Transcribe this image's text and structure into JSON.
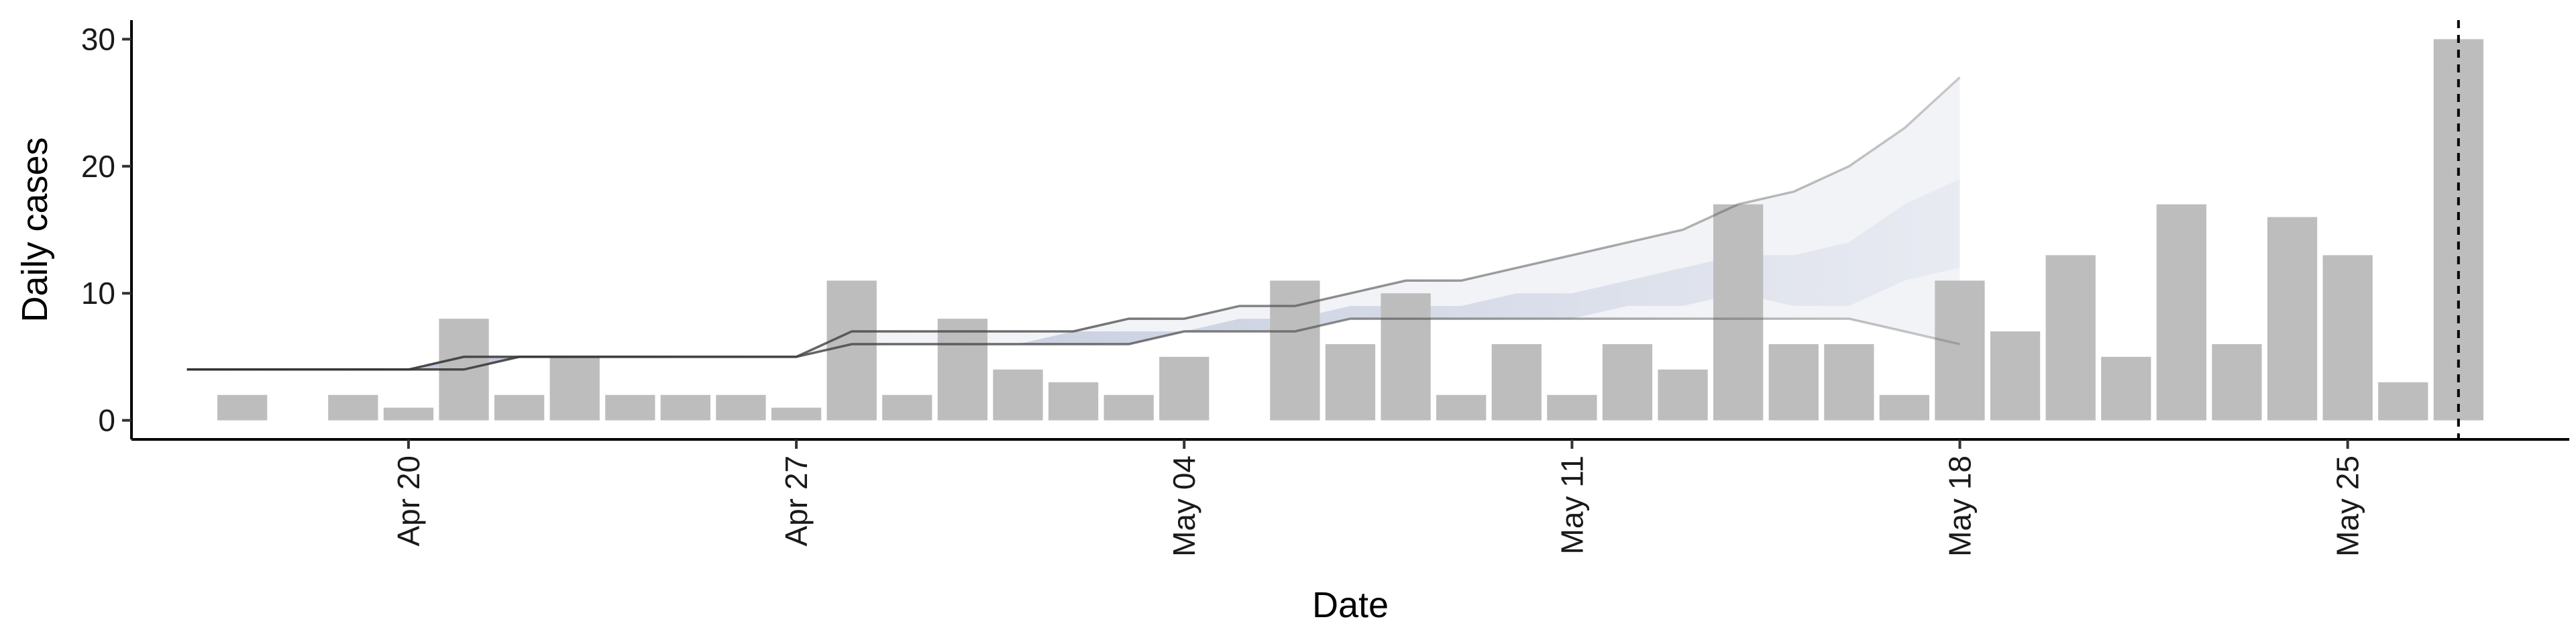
{
  "chart_data": {
    "type": "bar",
    "xlabel": "Date",
    "ylabel": "Daily cases",
    "ylim": [
      -1.5,
      31.5
    ],
    "xlim": [
      "2020-04-15",
      "2020-05-29"
    ],
    "yticks": [
      0,
      10,
      20,
      30
    ],
    "xticks": [
      {
        "date": "2020-04-20",
        "label": "Apr 20"
      },
      {
        "date": "2020-04-27",
        "label": "Apr 27"
      },
      {
        "date": "2020-05-04",
        "label": "May 04"
      },
      {
        "date": "2020-05-11",
        "label": "May 11"
      },
      {
        "date": "2020-05-18",
        "label": "May 18"
      },
      {
        "date": "2020-05-25",
        "label": "May 25"
      }
    ],
    "grid": false,
    "bars": {
      "color": "#bdbdbd",
      "dates": [
        "2020-04-17",
        "2020-04-18",
        "2020-04-19",
        "2020-04-20",
        "2020-04-21",
        "2020-04-22",
        "2020-04-23",
        "2020-04-24",
        "2020-04-25",
        "2020-04-26",
        "2020-04-27",
        "2020-04-28",
        "2020-04-29",
        "2020-04-30",
        "2020-05-01",
        "2020-05-02",
        "2020-05-03",
        "2020-05-04",
        "2020-05-05",
        "2020-05-06",
        "2020-05-07",
        "2020-05-08",
        "2020-05-09",
        "2020-05-10",
        "2020-05-11",
        "2020-05-12",
        "2020-05-13",
        "2020-05-14",
        "2020-05-15",
        "2020-05-16",
        "2020-05-17",
        "2020-05-18",
        "2020-05-19",
        "2020-05-20",
        "2020-05-21",
        "2020-05-22",
        "2020-05-23",
        "2020-05-24",
        "2020-05-25",
        "2020-05-26",
        "2020-05-27"
      ],
      "values": [
        2,
        0,
        2,
        1,
        8,
        2,
        5,
        2,
        2,
        2,
        1,
        11,
        2,
        8,
        4,
        3,
        2,
        5,
        0,
        11,
        6,
        10,
        2,
        6,
        2,
        6,
        4,
        17,
        6,
        6,
        2,
        11,
        7,
        13,
        5,
        17,
        6,
        16,
        13,
        3,
        30
      ]
    },
    "estimate_band": {
      "color": "#3c4f8f",
      "dates": [
        "2020-04-16",
        "2020-04-17",
        "2020-04-18",
        "2020-04-19",
        "2020-04-20",
        "2020-04-21",
        "2020-04-22",
        "2020-04-23",
        "2020-04-24",
        "2020-04-25",
        "2020-04-26",
        "2020-04-27",
        "2020-04-28",
        "2020-04-29",
        "2020-04-30",
        "2020-05-01",
        "2020-05-02",
        "2020-05-03",
        "2020-05-04",
        "2020-05-05",
        "2020-05-06",
        "2020-05-07",
        "2020-05-08",
        "2020-05-09",
        "2020-05-10",
        "2020-05-11",
        "2020-05-12",
        "2020-05-13",
        "2020-05-14",
        "2020-05-15",
        "2020-05-16",
        "2020-05-17",
        "2020-05-18"
      ],
      "lower": [
        4,
        4,
        4,
        4,
        4,
        4,
        5,
        5,
        5,
        5,
        5,
        5,
        6,
        6,
        6,
        6,
        6,
        6,
        7,
        7,
        7,
        8,
        8,
        8,
        8,
        8,
        8,
        8,
        8,
        8,
        8,
        7,
        6
      ],
      "upper": [
        4,
        4,
        4,
        4,
        4,
        5,
        5,
        5,
        5,
        5,
        5,
        5,
        7,
        7,
        7,
        7,
        7,
        8,
        8,
        9,
        9,
        10,
        11,
        11,
        12,
        13,
        14,
        15,
        17,
        18,
        20,
        23,
        27
      ],
      "inner_lower": [
        4,
        4,
        4,
        4,
        4,
        4,
        5,
        5,
        5,
        5,
        5,
        5,
        6,
        6,
        6,
        6,
        6,
        6,
        7,
        7,
        7,
        8,
        8,
        8,
        8,
        8,
        9,
        9,
        10,
        9,
        9,
        11,
        12
      ],
      "inner_upper": [
        4,
        4,
        4,
        4,
        4,
        5,
        5,
        5,
        5,
        5,
        5,
        5,
        6,
        6,
        6,
        6,
        7,
        7,
        7,
        8,
        8,
        9,
        9,
        9,
        10,
        10,
        11,
        12,
        13,
        13,
        14,
        17,
        19
      ]
    },
    "cutoff_line": {
      "date": "2020-05-27"
    }
  }
}
